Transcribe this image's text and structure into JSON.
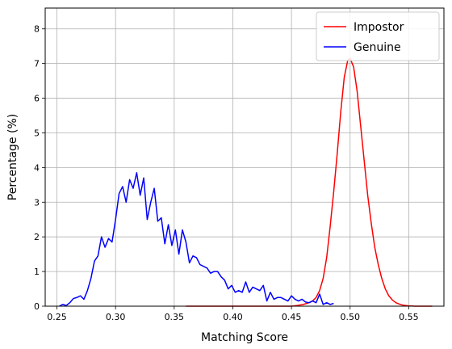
{
  "chart_data": {
    "type": "line",
    "xlabel": "Matching Score",
    "ylabel": "Percentage (%)",
    "xlim": [
      0.24,
      0.58
    ],
    "ylim": [
      0,
      8.6
    ],
    "xticks": [
      0.25,
      0.3,
      0.35,
      0.4,
      0.45,
      0.5,
      0.55
    ],
    "xtick_labels": [
      "0.25",
      "0.30",
      "0.35",
      "0.40",
      "0.45",
      "0.50",
      "0.55"
    ],
    "yticks": [
      0,
      1,
      2,
      3,
      4,
      5,
      6,
      7,
      8
    ],
    "ytick_labels": [
      "0",
      "1",
      "2",
      "3",
      "4",
      "5",
      "6",
      "7",
      "8"
    ],
    "grid": true,
    "legend_position": "top-right",
    "series": [
      {
        "name": "Impostor",
        "color": "#ff0000",
        "x": [
          0.36,
          0.38,
          0.4,
          0.42,
          0.44,
          0.45,
          0.455,
          0.46,
          0.465,
          0.468,
          0.471,
          0.474,
          0.477,
          0.48,
          0.483,
          0.486,
          0.489,
          0.492,
          0.495,
          0.498,
          0.5,
          0.503,
          0.506,
          0.509,
          0.512,
          0.515,
          0.518,
          0.521,
          0.524,
          0.527,
          0.53,
          0.533,
          0.536,
          0.539,
          0.542,
          0.545,
          0.55,
          0.555,
          0.57
        ],
        "y": [
          0,
          0,
          0,
          0,
          0,
          0,
          0.02,
          0.05,
          0.1,
          0.15,
          0.25,
          0.45,
          0.8,
          1.4,
          2.3,
          3.3,
          4.4,
          5.6,
          6.6,
          7.1,
          7.15,
          6.9,
          6.2,
          5.2,
          4.2,
          3.2,
          2.4,
          1.7,
          1.2,
          0.8,
          0.5,
          0.3,
          0.18,
          0.1,
          0.06,
          0.03,
          0.01,
          0,
          0
        ]
      },
      {
        "name": "Genuine",
        "color": "#0000ff",
        "x": [
          0.252,
          0.255,
          0.258,
          0.261,
          0.264,
          0.267,
          0.27,
          0.273,
          0.276,
          0.279,
          0.282,
          0.285,
          0.288,
          0.291,
          0.294,
          0.297,
          0.3,
          0.303,
          0.306,
          0.309,
          0.312,
          0.315,
          0.318,
          0.321,
          0.324,
          0.327,
          0.33,
          0.333,
          0.336,
          0.339,
          0.342,
          0.345,
          0.348,
          0.351,
          0.354,
          0.357,
          0.36,
          0.363,
          0.366,
          0.369,
          0.372,
          0.375,
          0.378,
          0.381,
          0.384,
          0.387,
          0.39,
          0.393,
          0.396,
          0.399,
          0.402,
          0.405,
          0.408,
          0.411,
          0.414,
          0.417,
          0.42,
          0.423,
          0.426,
          0.429,
          0.432,
          0.435,
          0.438,
          0.441,
          0.444,
          0.447,
          0.45,
          0.453,
          0.456,
          0.459,
          0.462,
          0.465,
          0.468,
          0.471,
          0.474,
          0.477,
          0.48,
          0.483,
          0.486
        ],
        "y": [
          0,
          0.05,
          0.02,
          0.1,
          0.22,
          0.25,
          0.3,
          0.2,
          0.45,
          0.8,
          1.3,
          1.45,
          2.0,
          1.7,
          1.95,
          1.85,
          2.5,
          3.25,
          3.45,
          3.0,
          3.65,
          3.4,
          3.85,
          3.2,
          3.7,
          2.5,
          3.0,
          3.4,
          2.45,
          2.55,
          1.8,
          2.35,
          1.75,
          2.2,
          1.5,
          2.2,
          1.85,
          1.25,
          1.45,
          1.4,
          1.2,
          1.15,
          1.1,
          0.95,
          1.0,
          1.0,
          0.85,
          0.75,
          0.5,
          0.6,
          0.4,
          0.45,
          0.4,
          0.7,
          0.4,
          0.55,
          0.5,
          0.45,
          0.6,
          0.15,
          0.4,
          0.2,
          0.25,
          0.25,
          0.2,
          0.15,
          0.3,
          0.2,
          0.15,
          0.2,
          0.12,
          0.1,
          0.15,
          0.1,
          0.35,
          0.05,
          0.1,
          0.05,
          0.08
        ]
      }
    ]
  }
}
